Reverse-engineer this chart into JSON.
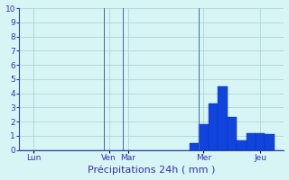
{
  "background_color": "#cceeff",
  "plot_bg_color": "#d8f5f5",
  "bar_color": "#1144dd",
  "bar_color_edge": "#0033bb",
  "ylim": [
    0,
    10
  ],
  "yticks": [
    0,
    1,
    2,
    3,
    4,
    5,
    6,
    7,
    8,
    9,
    10
  ],
  "grid_color": "#aacccc",
  "tick_color": "#3333aa",
  "label_color": "#3333aa",
  "day_labels": [
    "Lun",
    "Ven",
    "Mar",
    "Mer",
    "Jeu"
  ],
  "n_bars": 28,
  "bar_values": [
    0,
    0,
    0,
    0,
    0,
    0,
    0,
    0,
    0,
    0,
    0,
    0,
    0,
    0,
    0,
    0,
    0,
    0,
    0.5,
    1.8,
    3.3,
    4.5,
    2.3,
    0.7,
    1.2,
    1.2,
    1.1,
    0
  ],
  "vline_bar_indices": [
    9,
    11,
    19
  ],
  "xlabel": "Précipitations 24h ( mm )"
}
